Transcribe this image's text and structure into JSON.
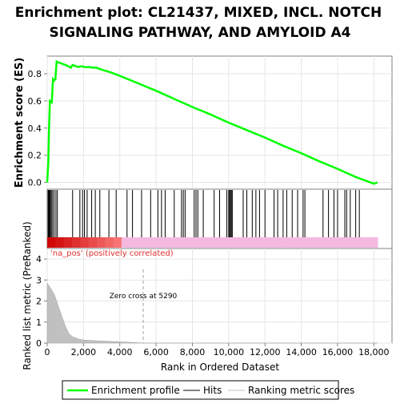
{
  "chart_data": {
    "type": "line",
    "title_lines": [
      "Enrichment plot: CL21437, MIXED, INCL. NOTCH",
      "SIGNALING PATHWAY, AND AMYLOID A4"
    ],
    "xlabel": "Rank in Ordered Dataset",
    "xlim": [
      0,
      19000
    ],
    "x_ticks": [
      0,
      2000,
      4000,
      6000,
      8000,
      10000,
      12000,
      14000,
      16000,
      18000
    ],
    "x_tick_labels": [
      "0",
      "2,000",
      "4,000",
      "6,000",
      "8,000",
      "10,000",
      "12,000",
      "14,000",
      "16,000",
      "18,000"
    ],
    "es_panel": {
      "ylabel": "Enrichment score (ES)",
      "ylim": [
        -0.05,
        0.93
      ],
      "y_ticks": [
        0.0,
        0.2,
        0.4,
        0.6,
        0.8
      ],
      "y_tick_labels": [
        "0.0",
        "0.2",
        "0.4",
        "0.6",
        "0.8"
      ],
      "curve_color": "#00ff00",
      "x": [
        0,
        60,
        100,
        150,
        250,
        320,
        380,
        450,
        520,
        580,
        700,
        900,
        1100,
        1300,
        1400,
        1500,
        1700,
        1900,
        2100,
        2300,
        2500,
        2700,
        3000,
        3500,
        4000,
        5000,
        6000,
        7000,
        8000,
        9000,
        10000,
        11000,
        12000,
        13000,
        14000,
        15000,
        16000,
        17000,
        18000,
        18200
      ],
      "y": [
        0.0,
        0.15,
        0.4,
        0.6,
        0.59,
        0.76,
        0.75,
        0.76,
        0.89,
        0.885,
        0.88,
        0.87,
        0.86,
        0.845,
        0.865,
        0.86,
        0.85,
        0.855,
        0.848,
        0.85,
        0.845,
        0.845,
        0.83,
        0.81,
        0.785,
        0.73,
        0.675,
        0.615,
        0.555,
        0.5,
        0.44,
        0.385,
        0.33,
        0.27,
        0.215,
        0.155,
        0.1,
        0.04,
        -0.01,
        0.0
      ]
    },
    "hits": [
      50,
      90,
      130,
      180,
      230,
      300,
      380,
      480,
      560,
      1400,
      1800,
      1950,
      2050,
      2200,
      2450,
      2650,
      2900,
      3400,
      3800,
      4400,
      4700,
      5200,
      5700,
      6100,
      6300,
      6500,
      7000,
      7400,
      7500,
      7600,
      8100,
      8200,
      8300,
      8600,
      9200,
      9500,
      9900,
      10000,
      10050,
      10100,
      10150,
      10200,
      10800,
      11000,
      11300,
      11500,
      11700,
      12000,
      12500,
      12700,
      13000,
      13200,
      13500,
      13800,
      14100,
      14200,
      15200,
      15500,
      15800,
      16000,
      16400,
      16500,
      16700,
      17000,
      17200
    ],
    "legend_entries": [
      "Enrichment profile",
      "Hits",
      "Ranking metric scores"
    ],
    "pos_label": "'na_pos' (positively correlated)",
    "metric_panel": {
      "ylabel": "Ranked list metric (PreRanked)",
      "ylim": [
        0,
        4.5
      ],
      "y_ticks": [
        0,
        1,
        2,
        3,
        4
      ],
      "y_tick_labels": [
        "0",
        "1",
        "2",
        "3",
        "4"
      ],
      "zero_cross_x": 5290,
      "zero_cross_label": "Zero cross at 5290",
      "x": [
        0,
        200,
        400,
        600,
        800,
        1000,
        1200,
        1400,
        1700,
        2000,
        2500,
        3000,
        3500,
        4000,
        4500,
        5000,
        5290,
        6000,
        10000,
        18200
      ],
      "y": [
        2.85,
        2.6,
        2.3,
        1.8,
        1.3,
        0.8,
        0.45,
        0.3,
        0.2,
        0.15,
        0.12,
        0.1,
        0.08,
        0.06,
        0.04,
        0.02,
        0.0,
        0.0,
        0.0,
        0.0
      ]
    }
  }
}
